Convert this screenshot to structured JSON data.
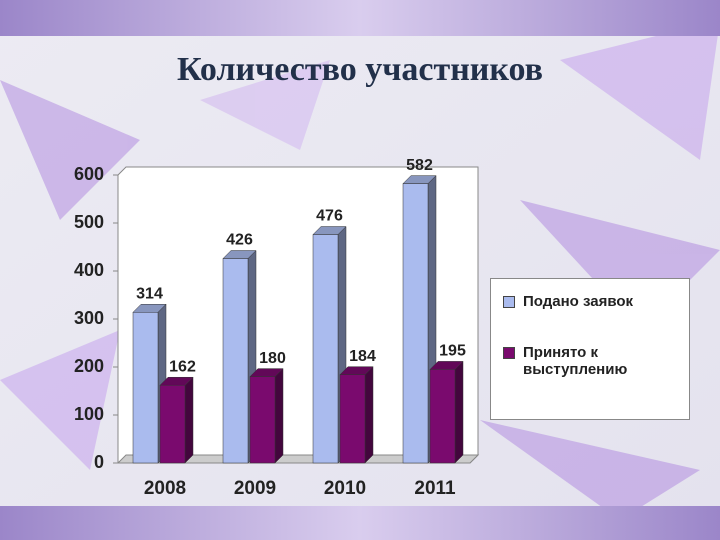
{
  "chart_data": {
    "type": "bar3d",
    "title": "Количество участников",
    "categories": [
      "2008",
      "2009",
      "2010",
      "2011"
    ],
    "series": [
      {
        "name": "Подано заявок",
        "color": "#aabbee",
        "values": [
          314,
          426,
          476,
          582
        ]
      },
      {
        "name": "Принято к выступлению",
        "color": "#7a0a6e",
        "values": [
          162,
          180,
          184,
          195
        ]
      }
    ],
    "ylim": [
      0,
      600
    ],
    "yticks": [
      0,
      100,
      200,
      300,
      400,
      500,
      600
    ],
    "grid": false,
    "legend": "right"
  }
}
